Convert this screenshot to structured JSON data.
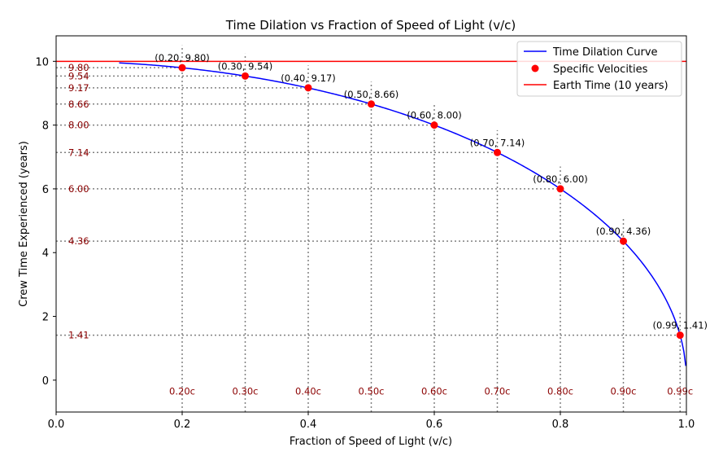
{
  "chart_data": {
    "type": "line",
    "title": "Time Dilation vs Fraction of Speed of Light (v/c)",
    "xlabel": "Fraction of Speed of Light (v/c)",
    "ylabel": "Crew Time Experienced (years)",
    "xlim": [
      0.0,
      1.0
    ],
    "ylim": [
      -1.0,
      10.8
    ],
    "xticks": [
      0.0,
      0.2,
      0.4,
      0.6,
      0.8,
      1.0
    ],
    "xtick_labels": [
      "0.0",
      "0.2",
      "0.4",
      "0.6",
      "0.8",
      "1.0"
    ],
    "yticks": [
      0,
      2,
      4,
      6,
      8,
      10
    ],
    "ytick_labels": [
      "0",
      "2",
      "4",
      "6",
      "8",
      "10"
    ],
    "earth_time": 10,
    "curve": {
      "name": "Time Dilation Curve",
      "color": "#0000ff",
      "x_start": 0.1,
      "x_end": 0.999,
      "formula": "10*sqrt(1-x^2)"
    },
    "points": {
      "name": "Specific Velocities",
      "color": "#ff0000",
      "x": [
        0.2,
        0.3,
        0.4,
        0.5,
        0.6,
        0.7,
        0.8,
        0.9,
        0.99
      ],
      "y": [
        9.8,
        9.54,
        9.17,
        8.66,
        8.0,
        7.14,
        6.0,
        4.36,
        1.41
      ],
      "labels": [
        "(0.20, 9.80)",
        "(0.30, 9.54)",
        "(0.40, 9.17)",
        "(0.50, 8.66)",
        "(0.60, 8.00)",
        "(0.70, 7.14)",
        "(0.80, 6.00)",
        "(0.90, 4.36)",
        "(0.99, 1.41)"
      ],
      "x_ref_labels": [
        "0.20c",
        "0.30c",
        "0.40c",
        "0.50c",
        "0.60c",
        "0.70c",
        "0.80c",
        "0.90c",
        "0.99c"
      ],
      "y_ref_labels": [
        "9.80",
        "9.54",
        "9.17",
        "8.66",
        "8.00",
        "7.14",
        "6.00",
        "4.36",
        "1.41"
      ]
    },
    "hline": {
      "name": "Earth Time (10 years)",
      "y": 10,
      "color": "#ff0000"
    },
    "legend": {
      "placement": "top-right",
      "entries": [
        "Time Dilation Curve",
        "Specific Velocities",
        "Earth Time (10 years)"
      ]
    },
    "ref_color": "#8b0000",
    "grid": false
  }
}
